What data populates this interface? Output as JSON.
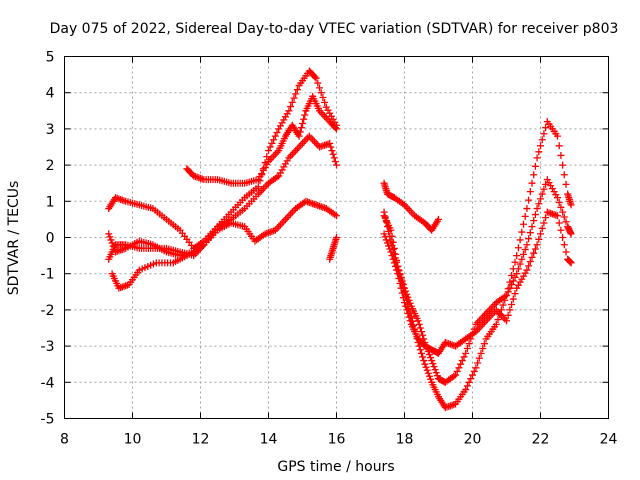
{
  "chart_data": {
    "type": "scatter",
    "title": "Day 075 of 2022, Sidereal Day-to-day VTEC variation (SDTVAR) for receiver p803",
    "xlabel": "GPS time / hours",
    "ylabel": "SDTVAR / TECUs",
    "xlim": [
      8,
      24
    ],
    "ylim": [
      -5,
      5
    ],
    "xticks": [
      8,
      10,
      12,
      14,
      16,
      18,
      20,
      22,
      24
    ],
    "yticks": [
      -5,
      -4,
      -3,
      -2,
      -1,
      0,
      1,
      2,
      3,
      4,
      5
    ],
    "grid": true,
    "marker": "+",
    "color": "#ff0000",
    "series": [
      {
        "name": "track-1",
        "points": [
          [
            9.3,
            0.8
          ],
          [
            9.5,
            1.1
          ],
          [
            9.8,
            1.0
          ],
          [
            10.2,
            0.9
          ],
          [
            10.6,
            0.8
          ],
          [
            11.0,
            0.5
          ],
          [
            11.4,
            0.2
          ],
          [
            11.8,
            -0.3
          ],
          [
            12.1,
            -0.1
          ],
          [
            12.5,
            0.3
          ],
          [
            12.9,
            0.7
          ],
          [
            13.3,
            1.1
          ],
          [
            13.7,
            1.4
          ],
          [
            14.0,
            2.4
          ],
          [
            14.3,
            3.0
          ],
          [
            14.6,
            3.5
          ],
          [
            14.9,
            4.2
          ],
          [
            15.2,
            4.6
          ],
          [
            15.4,
            4.4
          ],
          [
            15.7,
            3.6
          ],
          [
            16.0,
            3.1
          ]
        ]
      },
      {
        "name": "track-2",
        "points": [
          [
            9.3,
            -0.6
          ],
          [
            9.5,
            -0.2
          ],
          [
            9.8,
            -0.2
          ],
          [
            10.2,
            -0.3
          ],
          [
            10.6,
            -0.3
          ],
          [
            11.0,
            -0.3
          ],
          [
            11.4,
            -0.4
          ],
          [
            11.8,
            -0.5
          ],
          [
            12.1,
            -0.2
          ],
          [
            12.5,
            0.3
          ],
          [
            12.9,
            0.5
          ],
          [
            13.3,
            0.8
          ],
          [
            13.7,
            1.2
          ],
          [
            14.0,
            1.5
          ],
          [
            14.3,
            1.7
          ],
          [
            14.6,
            2.2
          ],
          [
            14.9,
            2.5
          ],
          [
            15.2,
            2.8
          ],
          [
            15.5,
            2.5
          ],
          [
            15.8,
            2.6
          ],
          [
            16.0,
            2.0
          ]
        ]
      },
      {
        "name": "track-3",
        "points": [
          [
            9.3,
            0.1
          ],
          [
            9.5,
            -0.4
          ],
          [
            9.8,
            -0.3
          ],
          [
            10.2,
            -0.1
          ],
          [
            10.6,
            -0.2
          ],
          [
            11.0,
            -0.4
          ],
          [
            11.4,
            -0.5
          ],
          [
            11.8,
            -0.4
          ],
          [
            12.1,
            -0.2
          ],
          [
            12.5,
            0.2
          ],
          [
            12.9,
            0.4
          ],
          [
            13.3,
            0.3
          ],
          [
            13.6,
            -0.1
          ],
          [
            13.9,
            0.1
          ],
          [
            14.2,
            0.2
          ],
          [
            14.5,
            0.5
          ],
          [
            14.8,
            0.8
          ],
          [
            15.1,
            1.0
          ],
          [
            15.4,
            0.9
          ],
          [
            15.7,
            0.8
          ],
          [
            16.0,
            0.6
          ]
        ]
      },
      {
        "name": "track-4",
        "points": [
          [
            9.4,
            -1.0
          ],
          [
            9.6,
            -1.4
          ],
          [
            9.9,
            -1.3
          ],
          [
            10.2,
            -0.9
          ],
          [
            10.7,
            -0.7
          ],
          [
            11.2,
            -0.7
          ],
          [
            11.6,
            -0.5
          ]
        ]
      },
      {
        "name": "track-5",
        "points": [
          [
            11.6,
            1.9
          ],
          [
            11.8,
            1.7
          ],
          [
            12.1,
            1.6
          ],
          [
            12.5,
            1.6
          ],
          [
            12.9,
            1.5
          ],
          [
            13.3,
            1.5
          ],
          [
            13.7,
            1.6
          ],
          [
            14.0,
            2.1
          ],
          [
            14.3,
            2.4
          ],
          [
            14.5,
            2.8
          ],
          [
            14.7,
            3.1
          ],
          [
            14.9,
            2.8
          ],
          [
            15.1,
            3.5
          ],
          [
            15.3,
            3.9
          ],
          [
            15.5,
            3.5
          ],
          [
            15.8,
            3.2
          ],
          [
            16.0,
            3.0
          ]
        ]
      },
      {
        "name": "track-6",
        "points": [
          [
            15.8,
            -0.6
          ],
          [
            15.9,
            -0.3
          ],
          [
            16.0,
            0.0
          ]
        ]
      },
      {
        "name": "track-7",
        "points": [
          [
            17.4,
            1.5
          ],
          [
            17.5,
            1.2
          ],
          [
            17.7,
            1.1
          ],
          [
            18.0,
            0.9
          ],
          [
            18.3,
            0.6
          ],
          [
            18.6,
            0.4
          ],
          [
            18.8,
            0.2
          ],
          [
            19.0,
            0.5
          ]
        ]
      },
      {
        "name": "track-8",
        "points": [
          [
            17.4,
            0.1
          ],
          [
            17.6,
            -0.4
          ],
          [
            17.8,
            -1.0
          ],
          [
            18.0,
            -1.8
          ],
          [
            18.2,
            -2.4
          ],
          [
            18.4,
            -2.8
          ],
          [
            18.6,
            -3.0
          ],
          [
            18.8,
            -3.1
          ],
          [
            19.0,
            -3.2
          ],
          [
            19.2,
            -2.9
          ],
          [
            19.5,
            -3.0
          ],
          [
            19.8,
            -2.8
          ],
          [
            20.1,
            -2.6
          ],
          [
            20.4,
            -2.3
          ],
          [
            20.7,
            -2.0
          ],
          [
            21.0,
            -2.3
          ],
          [
            21.3,
            -1.4
          ],
          [
            21.6,
            -0.9
          ],
          [
            21.9,
            -0.2
          ],
          [
            22.2,
            0.7
          ],
          [
            22.5,
            0.6
          ],
          [
            22.8,
            -0.6
          ],
          [
            22.9,
            -0.7
          ]
        ]
      },
      {
        "name": "track-9",
        "points": [
          [
            17.4,
            0.6
          ],
          [
            17.6,
            0.2
          ],
          [
            17.8,
            -0.8
          ],
          [
            18.0,
            -1.4
          ],
          [
            18.2,
            -1.9
          ],
          [
            18.4,
            -2.3
          ],
          [
            18.6,
            -2.9
          ],
          [
            18.8,
            -3.4
          ],
          [
            19.0,
            -3.9
          ],
          [
            19.2,
            -4.0
          ],
          [
            19.5,
            -3.8
          ],
          [
            19.8,
            -3.2
          ],
          [
            20.1,
            -2.4
          ],
          [
            20.4,
            -2.1
          ],
          [
            20.7,
            -1.8
          ],
          [
            21.0,
            -1.6
          ],
          [
            21.3,
            -1.0
          ],
          [
            21.6,
            -0.2
          ],
          [
            21.9,
            0.8
          ],
          [
            22.2,
            1.6
          ],
          [
            22.5,
            1.1
          ],
          [
            22.8,
            0.3
          ],
          [
            22.9,
            0.1
          ]
        ]
      },
      {
        "name": "track-10",
        "points": [
          [
            17.4,
            0.7
          ],
          [
            17.6,
            -0.1
          ],
          [
            17.8,
            -0.8
          ],
          [
            18.0,
            -1.5
          ],
          [
            18.2,
            -2.2
          ],
          [
            18.4,
            -2.9
          ],
          [
            18.6,
            -3.5
          ],
          [
            18.8,
            -4.0
          ],
          [
            19.0,
            -4.4
          ],
          [
            19.2,
            -4.7
          ],
          [
            19.5,
            -4.6
          ],
          [
            19.8,
            -4.2
          ],
          [
            20.1,
            -3.6
          ],
          [
            20.4,
            -2.8
          ],
          [
            20.7,
            -2.4
          ],
          [
            21.0,
            -1.6
          ],
          [
            21.3,
            -0.5
          ],
          [
            21.6,
            0.8
          ],
          [
            21.9,
            2.2
          ],
          [
            22.2,
            3.2
          ],
          [
            22.5,
            2.8
          ],
          [
            22.8,
            1.2
          ],
          [
            22.9,
            0.9
          ]
        ]
      }
    ]
  }
}
